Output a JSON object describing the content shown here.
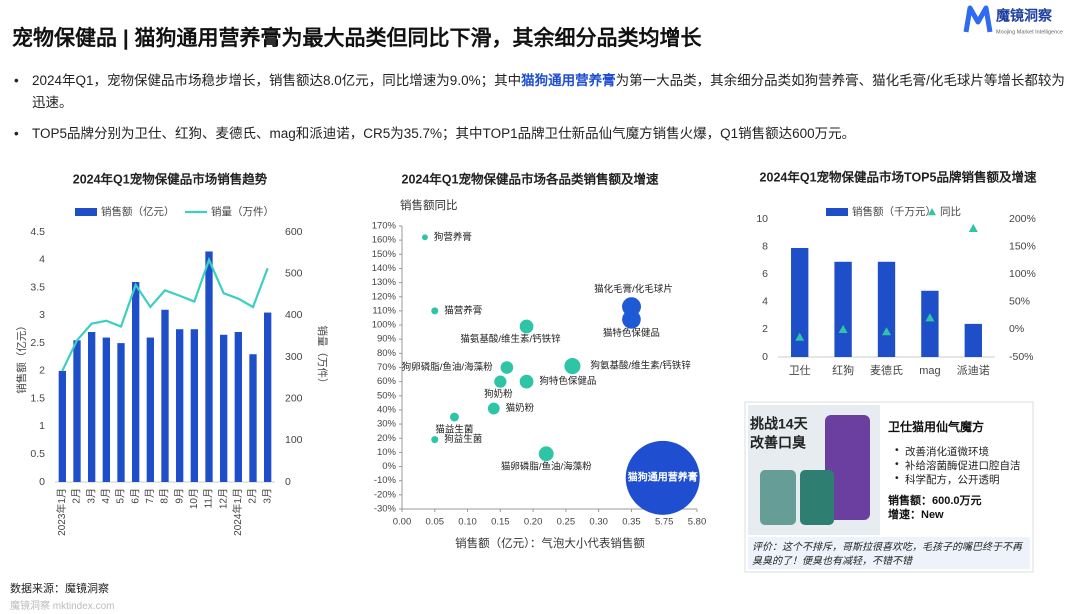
{
  "header": {
    "title": "宠物保健品 | 猫狗通用营养膏为最大品类但同比下滑，其余细分品类均增长",
    "logo": "魔镜洞察",
    "logo_sub": "Moojing Market Intelligence"
  },
  "bullets": [
    [
      "2024年Q1，宠物保健品市场稳步增长，销售额达8.0亿元，同比增速为9.0%；其中",
      "猫狗通用营养膏",
      "为第一大品类，其余细分品类如狗营养膏、猫化毛膏/化毛球片等增长都较为迅速。"
    ],
    [
      "TOP5品牌分别为卫仕、红狗、麦德氏、mag和派迪诺，CR5为35.7%；其中TOP1品牌卫仕新品仙气魔方销售火爆，Q1销售额达600万元。"
    ]
  ],
  "chart_data": [
    {
      "type": "combo",
      "title": "2024年Q1宠物保健品市场销售趋势",
      "categories": [
        "2023年1月",
        "2月",
        "3月",
        "4月",
        "5月",
        "6月",
        "7月",
        "8月",
        "9月",
        "10月",
        "11月",
        "12月",
        "2024年1月",
        "2月",
        "3月"
      ],
      "series": [
        {
          "name": "销售额（亿元）",
          "type": "bar",
          "color": "#1f4fc8",
          "values": [
            2.0,
            2.55,
            2.7,
            2.6,
            2.5,
            3.6,
            2.6,
            3.1,
            2.75,
            2.75,
            4.15,
            2.65,
            2.7,
            2.3,
            3.05
          ]
        },
        {
          "name": "销量（万件）",
          "type": "line",
          "axis": "y2",
          "color": "#3ccfc0",
          "values": [
            267,
            340,
            380,
            387,
            373,
            473,
            420,
            460,
            447,
            433,
            533,
            453,
            440,
            420,
            513
          ]
        }
      ],
      "ylim": [
        0,
        4.5
      ],
      "yticks": [
        0,
        0.5,
        1,
        1.5,
        2,
        2.5,
        3,
        3.5,
        4,
        4.5
      ],
      "y2lim": [
        0,
        600
      ],
      "y2ticks": [
        0,
        100,
        200,
        300,
        400,
        500,
        600
      ],
      "ylabel": "销售额（亿元）",
      "y2label": "销量（万件）"
    },
    {
      "type": "bubble",
      "title": "2024年Q1宠物保健品市场各品类销售额及增速",
      "labels": [
        "狗营养膏",
        "猫营养膏",
        "猫氨基酸/维生素/钙铁锌",
        "猫化毛膏/化毛球片",
        "猫特色保健品",
        "狗卵磷脂/鱼油/海藻粉",
        "狗氨基酸/维生素/钙铁锌",
        "狗奶粉",
        "狗特色保健品",
        "猫奶粉",
        "猫益生菌",
        "狗益生菌",
        "猫卵磷脂/鱼油/海藻粉",
        "猫狗通用营养膏"
      ],
      "x": [
        0.035,
        0.05,
        0.19,
        0.36,
        0.35,
        0.16,
        0.26,
        0.15,
        0.19,
        0.14,
        0.08,
        0.05,
        0.22,
        5.5
      ],
      "y": [
        162,
        110,
        99,
        113,
        104,
        70,
        71,
        60,
        60,
        41,
        35,
        19,
        9,
        -8
      ],
      "colors": [
        "#2ec4a6",
        "#2ec4a6",
        "#2ec4a6",
        "#1e5ad6",
        "#1e5ad6",
        "#2ec4a6",
        "#2ec4a6",
        "#2ec4a6",
        "#2ec4a6",
        "#2ec4a6",
        "#2ec4a6",
        "#2ec4a6",
        "#2ec4a6",
        "#1f4fd0"
      ],
      "xlim": [
        0,
        5.8
      ],
      "xticks": [
        {
          "value": 0,
          "label": "0.00"
        },
        0.05,
        {
          "value": 0.1,
          "label": "0.10"
        },
        0.15,
        {
          "value": 0.2,
          "label": "0.20"
        },
        0.25,
        {
          "value": 0.3,
          "label": "0.30"
        },
        0.35,
        5.75,
        {
          "value": 5.8,
          "label": "5.80"
        }
      ],
      "ylim": [
        -30,
        170
      ],
      "yticks": [
        {
          "value": -30,
          "label": "-30%"
        },
        {
          "value": -20,
          "label": "-20%"
        },
        {
          "value": -10,
          "label": "-10%"
        },
        {
          "value": 0,
          "label": "0%"
        },
        {
          "value": 10,
          "label": "10%"
        },
        {
          "value": 20,
          "label": "20%"
        },
        {
          "value": 30,
          "label": "30%"
        },
        {
          "value": 40,
          "label": "40%"
        },
        {
          "value": 50,
          "label": "50%"
        },
        {
          "value": 60,
          "label": "60%"
        },
        {
          "value": 70,
          "label": "70%"
        },
        {
          "value": 80,
          "label": "80%"
        },
        {
          "value": 90,
          "label": "90%"
        },
        {
          "value": 100,
          "label": "100%"
        },
        {
          "value": 110,
          "label": "110%"
        },
        {
          "value": 120,
          "label": "120%"
        },
        {
          "value": 130,
          "label": "130%"
        },
        {
          "value": 140,
          "label": "140%"
        },
        {
          "value": 150,
          "label": "150%"
        },
        {
          "value": 160,
          "label": "160%"
        },
        {
          "value": 170,
          "label": "170%"
        }
      ],
      "ylabel": "销售额同比",
      "xlabel": "销售额（亿元）：气泡大小代表销售额"
    },
    {
      "type": "combo",
      "title": "2024年Q1宠物保健品市场TOP5品牌销售额及增速",
      "categories": [
        "卫仕",
        "红狗",
        "麦德氏",
        "mag",
        "派迪诺"
      ],
      "series": [
        {
          "name": "销售额（千万元）",
          "type": "bar",
          "color": "#1f4fc8",
          "values": [
            7.9,
            6.9,
            6.9,
            4.8,
            2.4
          ]
        },
        {
          "name": "同比",
          "type": "scatter",
          "axis": "y2",
          "color": "#2ec4a6",
          "values": [
            -14,
            0,
            -4,
            21,
            183
          ]
        }
      ],
      "ylim": [
        0,
        10
      ],
      "yticks": [
        0,
        2,
        4,
        6,
        8,
        10
      ],
      "y2lim": [
        -50,
        200
      ],
      "y2ticks": [
        {
          "value": -50,
          "label": "-50%"
        },
        {
          "value": 0,
          "label": "0%"
        },
        {
          "value": 50,
          "label": "50%"
        },
        {
          "value": 100,
          "label": "100%"
        },
        {
          "value": 150,
          "label": "150%"
        },
        {
          "value": 200,
          "label": "200%"
        }
      ]
    }
  ],
  "product_card": {
    "image_text": [
      "挑战14天",
      "改善口臭"
    ],
    "name": "卫仕猫用仙气魔方",
    "features": [
      "改善消化道微环境",
      "补给溶菌酶促进口腔自洁",
      "科学配方，公开透明"
    ],
    "sales": "销售额：600.0万元",
    "growth": "增速：New",
    "review": "评价：这个不排斥，哥斯拉很喜欢吃，毛孩子的嘴巴终于不再臭臭的了！便臭也有减轻，不错不错"
  },
  "footer": {
    "source": "数据来源：魔镜洞察",
    "watermark": "魔镜洞察 mktindex.com"
  }
}
